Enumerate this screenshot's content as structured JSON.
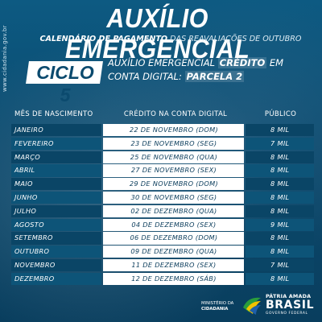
{
  "side_url": "www.cidadania.gov.br",
  "title": "AUXÍLIO EMERGENCIAL",
  "subtitle": {
    "bold": "CALENDÁRIO DE PAGAMENTO",
    "rest": "DAS REAVALIAÇÕES DE OUTUBRO"
  },
  "ciclo": {
    "label": "CICLO 5",
    "line1_a": "AUXÍLIO EMERGENCIAL",
    "line1_b": "CRÉDITO",
    "line1_c": "EM",
    "line2_a": "CONTA DIGITAL:",
    "line2_b": "PARCELA 2"
  },
  "table": {
    "headers": [
      "MÊS DE NASCIMENTO",
      "CRÉDITO NA CONTA DIGITAL",
      "PÚBLICO"
    ],
    "rows": [
      {
        "mes": "JANEIRO",
        "credito": "22 DE NOVEMBRO (DOM)",
        "publico": "8 MIL"
      },
      {
        "mes": "FEVEREIRO",
        "credito": "23 DE NOVEMBRO (SEG)",
        "publico": "7 MIL"
      },
      {
        "mes": "MARÇO",
        "credito": "25 DE NOVEMBRO (QUA)",
        "publico": "8 MIL"
      },
      {
        "mes": "ABRIL",
        "credito": "27 DE NOVEMBRO (SEX)",
        "publico": "8 MIL"
      },
      {
        "mes": "MAIO",
        "credito": "29 DE NOVEMBRO (DOM)",
        "publico": "8 MIL"
      },
      {
        "mes": "JUNHO",
        "credito": "30 DE NOVEMBRO (SEG)",
        "publico": "8 MIL"
      },
      {
        "mes": "JULHO",
        "credito": "02 DE DEZEMBRO (QUA)",
        "publico": "8 MIL"
      },
      {
        "mes": "AGOSTO",
        "credito": "04 DE DEZEMBRO (SEX)",
        "publico": "9 MIL"
      },
      {
        "mes": "SETEMBRO",
        "credito": "06 DE DEZEMBRO (DOM)",
        "publico": "8 MIL"
      },
      {
        "mes": "OUTUBRO",
        "credito": "09 DE DEZEMBRO (QUA)",
        "publico": "8 MIL"
      },
      {
        "mes": "NOVEMBRO",
        "credito": "11 DE DEZEMBRO (SEX)",
        "publico": "7 MIL"
      },
      {
        "mes": "DEZEMBRO",
        "credito": "12 DE DEZEMBRO (SÁB)",
        "publico": "8 MIL"
      }
    ]
  },
  "footer": {
    "ministerio_line1": "MINISTÉRIO DA",
    "ministerio_line2": "CIDADANIA",
    "brand_line1": "PÁTRIA AMADA",
    "brand_line2": "BRASIL",
    "brand_line3": "GOVERNO FEDERAL"
  },
  "colors": {
    "background": "#0b4a6e",
    "cell_light": "#ffffff",
    "cell_dark": "#0a4566",
    "flag_green": "#2a9d3c",
    "flag_yellow": "#f2c200",
    "flag_blue": "#1f5fa8"
  }
}
